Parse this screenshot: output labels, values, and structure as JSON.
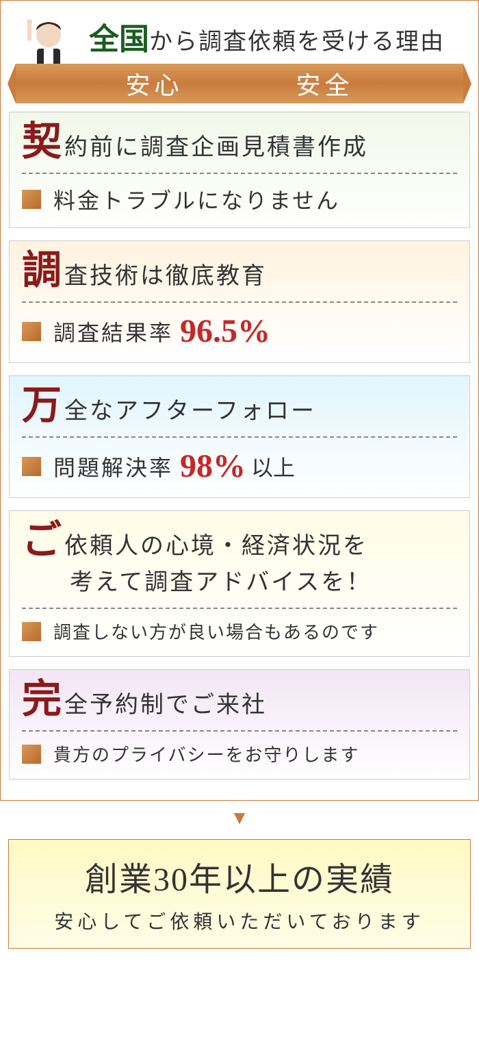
{
  "colors": {
    "accent_green": "#1b5e20",
    "accent_red": "#8b1a1a",
    "stat_red": "#c62828",
    "ribbon": "#c97b3d",
    "arrow": "#c97b3d",
    "card_bg": [
      "linear-gradient(180deg,#f1f8e9 0%,#ffffff 100%)",
      "linear-gradient(180deg,#fff3e0 0%,#ffffff 100%)",
      "linear-gradient(180deg,#e1f5fe 0%,#ffffff 100%)",
      "linear-gradient(180deg,#fffde7 0%,#ffffff 100%)",
      "linear-gradient(180deg,#f3e5f5 0%,#ffffff 100%)"
    ]
  },
  "header": {
    "title_emphasis": "全国",
    "title_rest": "から調査依頼を受ける理由"
  },
  "ribbon": {
    "left": "安心",
    "right": "安全"
  },
  "cards": [
    {
      "big": "契",
      "rest": "約前に調査企画見積書作成",
      "rest2": "",
      "body": "料金トラブルになりません",
      "body_size": "lg",
      "stat": "",
      "stat_suffix": ""
    },
    {
      "big": "調",
      "rest": "査技術は徹底教育",
      "rest2": "",
      "body": "調査結果率",
      "body_size": "lg",
      "stat": "96.5%",
      "stat_suffix": ""
    },
    {
      "big": "万",
      "rest": "全なアフターフォロー",
      "rest2": "",
      "body": "問題解決率",
      "body_size": "lg",
      "stat": "98%",
      "stat_suffix": "以上"
    },
    {
      "big": "ご",
      "rest": "依頼人の心境・経済状況を",
      "rest2": "考えて調査アドバイスを！",
      "body": "調査しない方が良い場合もあるのです",
      "body_size": "sm",
      "stat": "",
      "stat_suffix": ""
    },
    {
      "big": "完",
      "rest": "全予約制でご来社",
      "rest2": "",
      "body": "貴方のプライバシーをお守りします",
      "body_size": "sm",
      "stat": "",
      "stat_suffix": ""
    }
  ],
  "arrow": "▼",
  "footer": {
    "main": "創業30年以上の実績",
    "sub": "安心してご依頼いただいております"
  }
}
